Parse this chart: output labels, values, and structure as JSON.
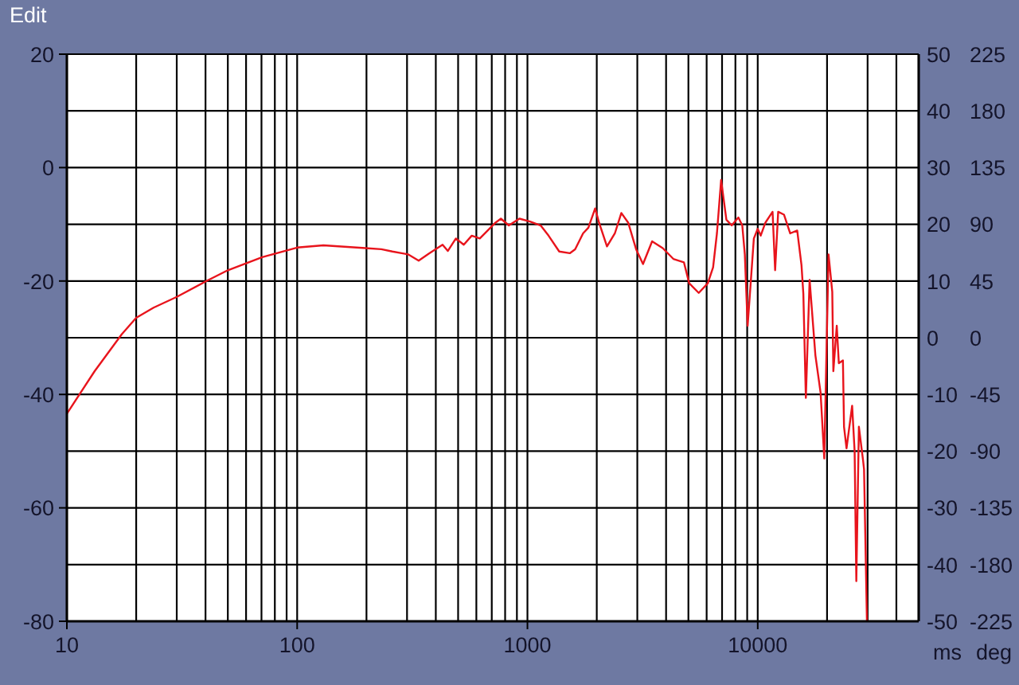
{
  "chart_data": {
    "type": "line",
    "annotations": [
      "Edit"
    ],
    "x": [
      10,
      11.3,
      13.2,
      17.3,
      20,
      23.8,
      30,
      40.4,
      50,
      70.5,
      100,
      130,
      198,
      232,
      259,
      303,
      337,
      375,
      428,
      451,
      489,
      529,
      573,
      621,
      672,
      727,
      767,
      830,
      923,
      1026,
      1141,
      1235,
      1374,
      1527,
      1611,
      1744,
      1839,
      1968,
      2046,
      2215,
      2397,
      2557,
      2738,
      2964,
      3176,
      3478,
      3867,
      4300,
      4780,
      5040,
      5545,
      6070,
      6400,
      6650,
      6935,
      7310,
      7710,
      8240,
      8570,
      8790,
      9040,
      9620,
      10000,
      10300,
      10800,
      11600,
      11900,
      12270,
      13000,
      13830,
      14840,
      15490,
      15780,
      16180,
      16800,
      17800,
      18750,
      19450,
      20300,
      21070,
      21300,
      22040,
      22500,
      23440,
      23700,
      24300,
      25700,
      26350,
      26800,
      27500,
      28700,
      28950,
      29800
    ],
    "series": [
      {
        "color": "#e8141c",
        "values": [
          -43.4,
          -40.1,
          -35.9,
          -29.4,
          -26.5,
          -24.7,
          -22.8,
          -20,
          -18.1,
          -15.8,
          -14.1,
          -13.7,
          -14.2,
          -14.4,
          -14.8,
          -15.3,
          -16.4,
          -15.1,
          -13.6,
          -14.7,
          -12.5,
          -13.6,
          -12,
          -12.5,
          -11.1,
          -9.7,
          -9,
          -10.2,
          -9,
          -9.5,
          -10.2,
          -12,
          -14.8,
          -15.1,
          -14.4,
          -11.6,
          -10.6,
          -7.2,
          -9.7,
          -13.9,
          -11.6,
          -8,
          -9.7,
          -14.4,
          -17,
          -13,
          -14.2,
          -16.1,
          -16.7,
          -20.4,
          -22.1,
          -20.4,
          -17.6,
          -11.6,
          -2.2,
          -9.2,
          -10.2,
          -8.8,
          -10.2,
          -15.3,
          -27.9,
          -12.5,
          -10.8,
          -12,
          -9.7,
          -7.8,
          -18.1,
          -7.8,
          -8.3,
          -11.6,
          -11.1,
          -17.2,
          -22.3,
          -40.6,
          -19.8,
          -33.1,
          -39.7,
          -51.3,
          -15.3,
          -21.9,
          -35.9,
          -27.9,
          -34.5,
          -34,
          -45.7,
          -49.5,
          -42,
          -50,
          -72.9,
          -45.7,
          -51.8,
          -53.2,
          -80
        ]
      }
    ],
    "xlim": [
      10,
      50000
    ],
    "xticks": [
      10,
      {
        "value": 20,
        "label": null
      },
      {
        "value": 30,
        "label": null
      },
      {
        "value": 40,
        "label": null
      },
      {
        "value": 50,
        "label": null
      },
      {
        "value": 60,
        "label": null
      },
      {
        "value": 70,
        "label": null
      },
      {
        "value": 80,
        "label": null
      },
      {
        "value": 90,
        "label": null
      },
      100,
      {
        "value": 200,
        "label": null
      },
      {
        "value": 300,
        "label": null
      },
      {
        "value": 400,
        "label": null
      },
      {
        "value": 500,
        "label": null
      },
      {
        "value": 600,
        "label": null
      },
      {
        "value": 700,
        "label": null
      },
      {
        "value": 800,
        "label": null
      },
      {
        "value": 900,
        "label": null
      },
      1000,
      {
        "value": 2000,
        "label": null
      },
      {
        "value": 3000,
        "label": null
      },
      {
        "value": 4000,
        "label": null
      },
      {
        "value": 5000,
        "label": null
      },
      {
        "value": 6000,
        "label": null
      },
      {
        "value": 7000,
        "label": null
      },
      {
        "value": 8000,
        "label": null
      },
      {
        "value": 9000,
        "label": null
      },
      10000,
      {
        "value": 20000,
        "label": null
      },
      {
        "value": 30000,
        "label": null
      },
      {
        "value": 40000,
        "label": null
      }
    ],
    "ylim": [
      -80,
      20
    ],
    "yticks": [
      -80,
      {
        "value": -70,
        "label": null
      },
      -60,
      {
        "value": -50,
        "label": null
      },
      -40,
      {
        "value": -30,
        "label": null
      },
      -20,
      {
        "value": -10,
        "label": null
      },
      0,
      {
        "value": 10,
        "label": null
      },
      20
    ],
    "y2label": "ms",
    "y2lim": [
      -50,
      50
    ],
    "y2ticks": [
      -50,
      -40,
      -30,
      -20,
      -10,
      0,
      10,
      20,
      30,
      40,
      50
    ],
    "y3label": "deg",
    "y3lim": [
      -225,
      225
    ],
    "y3ticks": [
      -225,
      -180,
      -135,
      -90,
      -45,
      0,
      45,
      90,
      135,
      180,
      225
    ],
    "log": "x",
    "grid": true
  }
}
